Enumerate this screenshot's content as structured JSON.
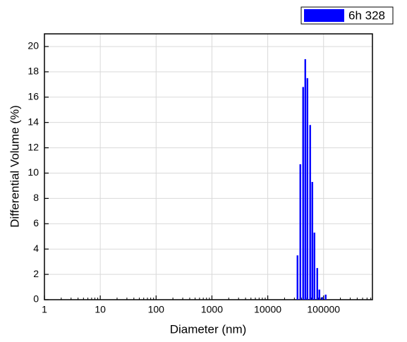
{
  "chart_data": {
    "type": "bar",
    "x_label": "Diameter (nm)",
    "y_label": "Differential Volume (%)",
    "xscale": "log",
    "grid": true,
    "legend": "top-right",
    "x": [
      34100,
      38300,
      43000,
      47000,
      51300,
      57500,
      62800,
      68500,
      77000,
      84000,
      94400,
      109000
    ],
    "series": [
      {
        "name": "6h 328",
        "color": "#0000ff",
        "values": [
          3.5,
          10.7,
          16.8,
          19.0,
          17.5,
          13.8,
          9.3,
          5.3,
          2.5,
          0.8,
          0.2,
          0.4
        ]
      }
    ],
    "xlim": [
      1,
      750000
    ],
    "xticks": [
      1,
      10,
      100,
      1000,
      10000,
      100000
    ],
    "ylim": [
      0,
      21
    ],
    "yticks": [
      0,
      2,
      4,
      6,
      8,
      10,
      12,
      14,
      16,
      18,
      20
    ]
  }
}
